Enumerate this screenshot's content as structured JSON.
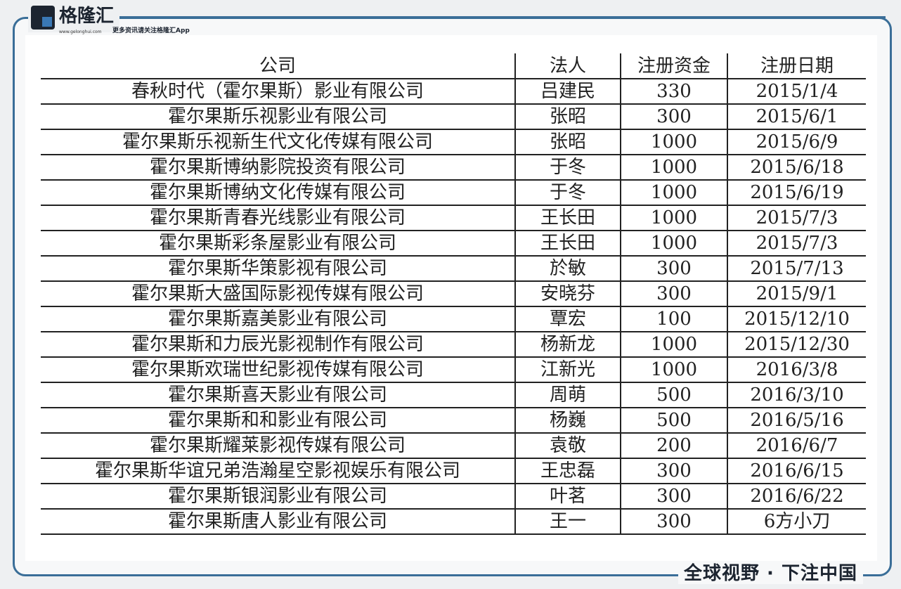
{
  "header": {
    "brand": "格隆汇",
    "url": "www.gelonghui.com",
    "tagline": "更多资讯请关注格隆汇App"
  },
  "table": {
    "columns": [
      "公司",
      "法人",
      "注册资金",
      "注册日期"
    ],
    "rows": [
      [
        "春秋时代（霍尔果斯）影业有限公司",
        "吕建民",
        "330",
        "2015/1/4"
      ],
      [
        "霍尔果斯乐视影业有限公司",
        "张昭",
        "300",
        "2015/6/1"
      ],
      [
        "霍尔果斯乐视新生代文化传媒有限公司",
        "张昭",
        "1000",
        "2015/6/9"
      ],
      [
        "霍尔果斯博纳影院投资有限公司",
        "于冬",
        "1000",
        "2015/6/18"
      ],
      [
        "霍尔果斯博纳文化传媒有限公司",
        "于冬",
        "1000",
        "2015/6/19"
      ],
      [
        "霍尔果斯青春光线影业有限公司",
        "王长田",
        "1000",
        "2015/7/3"
      ],
      [
        "霍尔果斯彩条屋影业有限公司",
        "王长田",
        "1000",
        "2015/7/3"
      ],
      [
        "霍尔果斯华策影视有限公司",
        "於敏",
        "300",
        "2015/7/13"
      ],
      [
        "霍尔果斯大盛国际影视传媒有限公司",
        "安晓芬",
        "300",
        "2015/9/1"
      ],
      [
        "霍尔果斯嘉美影业有限公司",
        "覃宏",
        "100",
        "2015/12/10"
      ],
      [
        "霍尔果斯和力辰光影视制作有限公司",
        "杨新龙",
        "1000",
        "2015/12/30"
      ],
      [
        "霍尔果斯欢瑞世纪影视传媒有限公司",
        "江新光",
        "1000",
        "2016/3/8"
      ],
      [
        "霍尔果斯喜天影业有限公司",
        "周萌",
        "500",
        "2016/3/10"
      ],
      [
        "霍尔果斯和和影业有限公司",
        "杨巍",
        "500",
        "2016/5/16"
      ],
      [
        "霍尔果斯耀莱影视传媒有限公司",
        "袁敬",
        "200",
        "2016/6/7"
      ],
      [
        "霍尔果斯华谊兄弟浩瀚星空影视娱乐有限公司",
        "王忠磊",
        "300",
        "2016/6/15"
      ],
      [
        "霍尔果斯银润影业有限公司",
        "叶茗",
        "300",
        "2016/6/22"
      ],
      [
        "霍尔果斯唐人影业有限公司",
        "王一",
        "300",
        ""
      ]
    ]
  },
  "watermark": "6方小刀",
  "slogan": "全球视野 · 下注中国"
}
